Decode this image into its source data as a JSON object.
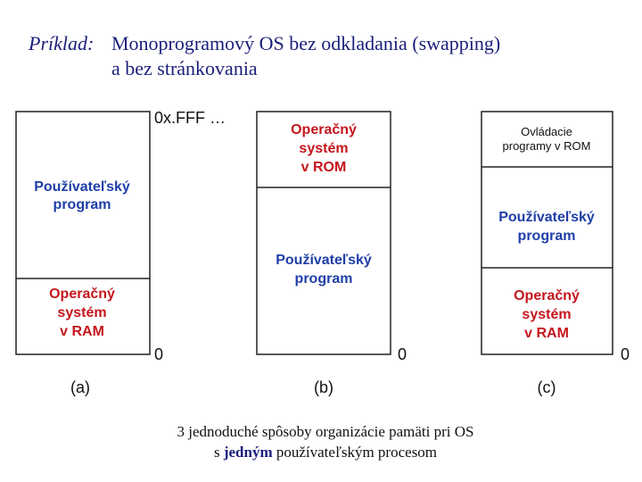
{
  "header": {
    "label": "Príklad:",
    "title": "Monoprogramový OS bez odkladania (swapping)",
    "title_line2": "a bez stránkovania"
  },
  "diagrams": [
    {
      "caption": "(a)",
      "top_address": "0x.FFF …",
      "bottom_address": "0",
      "regions": [
        {
          "lines": [
            "Používateľský",
            "program"
          ]
        },
        {
          "lines": [
            "Operačný",
            "systém",
            "v RAM"
          ]
        }
      ]
    },
    {
      "caption": "(b)",
      "bottom_address": "0",
      "regions": [
        {
          "lines": [
            "Operačný",
            "systém",
            "v ROM"
          ]
        },
        {
          "lines": [
            "Používateľský",
            "program"
          ]
        }
      ]
    },
    {
      "caption": "(c)",
      "bottom_address": "0",
      "regions": [
        {
          "lines": [
            "Ovládacie",
            "programy v ROM"
          ]
        },
        {
          "lines": [
            "Používateľský",
            "program"
          ]
        },
        {
          "lines": [
            "Operačný",
            "systém",
            "v RAM"
          ]
        }
      ]
    }
  ],
  "footer": {
    "line1": "3 jednoduché spôsoby organizácie pamäti pri OS",
    "line2": [
      "s ",
      "jedným",
      " používateľským procesom"
    ]
  }
}
